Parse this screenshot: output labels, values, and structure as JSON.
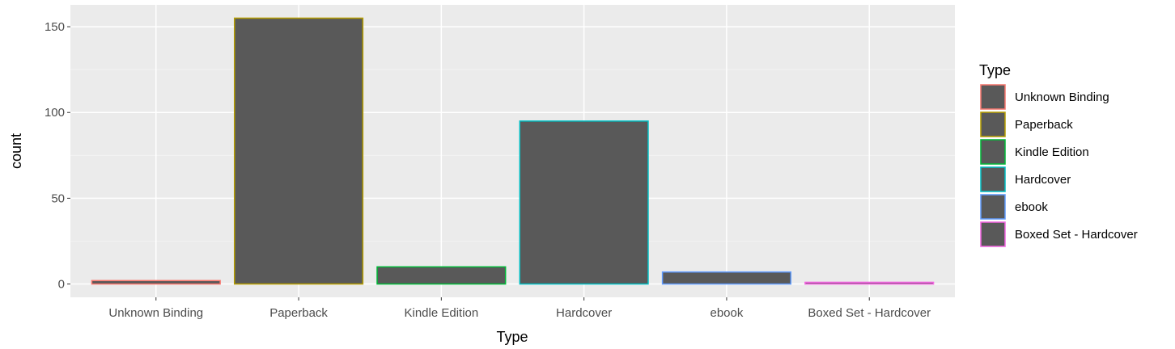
{
  "chart_data": {
    "type": "bar",
    "categories": [
      "Unknown Binding",
      "Paperback",
      "Kindle Edition",
      "Hardcover",
      "ebook",
      "Boxed Set - Hardcover"
    ],
    "values": [
      2,
      155,
      10,
      95,
      7,
      1
    ],
    "xlabel": "Type",
    "ylabel": "count",
    "ylim": [
      -7.75,
      162.75
    ],
    "yticks": [
      0,
      50,
      100,
      150
    ],
    "grid": true,
    "bar_fill": "#595959",
    "outline_colors": [
      "#F8766D",
      "#B79F00",
      "#00BA38",
      "#00BFC4",
      "#619CFF",
      "#F564E3"
    ],
    "legend": {
      "title": "Type",
      "placement": "right",
      "entries": [
        "Unknown Binding",
        "Paperback",
        "Kindle Edition",
        "Hardcover",
        "ebook",
        "Boxed Set - Hardcover"
      ]
    }
  }
}
